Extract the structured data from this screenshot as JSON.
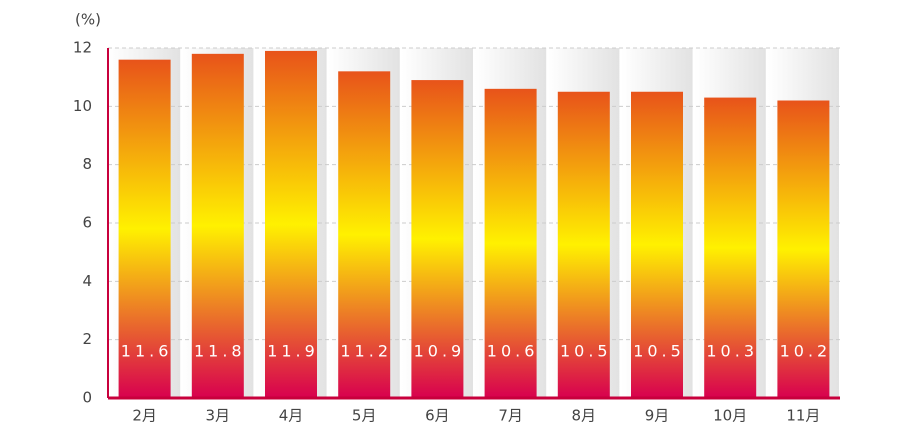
{
  "chart_data": {
    "type": "bar",
    "y_unit": "(%)",
    "categories": [
      "2月",
      "3月",
      "4月",
      "5月",
      "6月",
      "7月",
      "8月",
      "9月",
      "10月",
      "11月"
    ],
    "values": [
      11.6,
      11.8,
      11.9,
      11.2,
      10.9,
      10.6,
      10.5,
      10.5,
      10.3,
      10.2
    ],
    "gradient": [
      "#e8531a",
      "#fff100",
      "#d8004f"
    ],
    "axis_color": "#c8003c",
    "ylim": [
      0,
      12
    ],
    "yticks": [
      0,
      2,
      4,
      6,
      8,
      10,
      12
    ],
    "grid": true
  }
}
